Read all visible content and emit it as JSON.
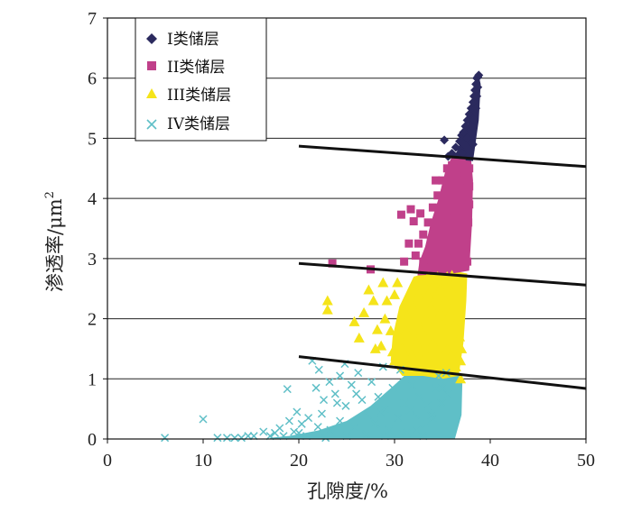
{
  "chart_data": {
    "type": "scatter",
    "xlabel": "孔隙度/%",
    "ylabel": "渗透率/μm",
    "ylabel_superscript": "2",
    "xlim": [
      0,
      50
    ],
    "ylim": [
      0,
      7
    ],
    "x_ticks": [
      "0",
      "10",
      "20",
      "30",
      "40",
      "50"
    ],
    "y_ticks": [
      "0",
      "1",
      "2",
      "3",
      "4",
      "5",
      "6",
      "7"
    ],
    "grid": "horizontal",
    "legend_position": "top-left",
    "series": [
      {
        "name": "I类储层",
        "marker": "diamond",
        "color": "#2b2a5e",
        "points": [
          [
            35.2,
            4.97
          ],
          [
            35.6,
            4.7
          ],
          [
            36.0,
            4.75
          ],
          [
            36.4,
            4.85
          ],
          [
            36.8,
            4.95
          ],
          [
            37.0,
            5.05
          ],
          [
            37.2,
            5.1
          ],
          [
            37.4,
            5.2
          ],
          [
            37.3,
            4.9
          ],
          [
            36.9,
            4.7
          ],
          [
            37.6,
            5.3
          ],
          [
            37.8,
            5.4
          ],
          [
            37.6,
            5.0
          ],
          [
            38.0,
            5.5
          ],
          [
            38.1,
            5.2
          ],
          [
            38.2,
            5.6
          ],
          [
            38.3,
            5.7
          ],
          [
            38.4,
            5.8
          ],
          [
            38.5,
            5.9
          ],
          [
            38.6,
            6.0
          ],
          [
            38.7,
            6.02
          ],
          [
            38.8,
            6.05
          ],
          [
            38.5,
            5.5
          ],
          [
            38.3,
            5.3
          ],
          [
            37.9,
            4.8
          ],
          [
            38.6,
            5.7
          ],
          [
            38.7,
            5.85
          ],
          [
            38.2,
            4.9
          ],
          [
            36.5,
            4.7
          ],
          [
            37.1,
            4.75
          ]
        ]
      },
      {
        "name": "II类储层",
        "marker": "square",
        "color": "#c0408a",
        "points": [
          [
            23.5,
            2.92
          ],
          [
            27.5,
            2.82
          ],
          [
            30.7,
            3.73
          ],
          [
            31.7,
            3.82
          ],
          [
            32.0,
            3.62
          ],
          [
            32.7,
            3.75
          ],
          [
            31.5,
            3.25
          ],
          [
            31.0,
            2.95
          ],
          [
            32.2,
            3.05
          ],
          [
            33.0,
            3.4
          ],
          [
            33.5,
            3.6
          ],
          [
            34.0,
            3.85
          ],
          [
            34.5,
            4.05
          ],
          [
            35.0,
            4.3
          ],
          [
            35.5,
            4.5
          ],
          [
            36.0,
            4.55
          ],
          [
            36.5,
            4.6
          ],
          [
            37.0,
            4.62
          ],
          [
            37.5,
            4.55
          ],
          [
            33.5,
            2.85
          ],
          [
            34.0,
            3.1
          ],
          [
            34.6,
            3.35
          ],
          [
            35.2,
            3.6
          ],
          [
            35.7,
            3.9
          ],
          [
            36.2,
            4.1
          ],
          [
            36.8,
            4.3
          ],
          [
            37.3,
            4.4
          ],
          [
            37.8,
            4.5
          ],
          [
            35.0,
            2.8
          ],
          [
            35.5,
            3.0
          ],
          [
            36.0,
            3.2
          ],
          [
            36.5,
            3.5
          ],
          [
            37.0,
            3.8
          ],
          [
            37.5,
            4.0
          ],
          [
            37.8,
            4.2
          ],
          [
            34.0,
            2.8
          ],
          [
            36.8,
            2.9
          ],
          [
            37.3,
            3.3
          ],
          [
            37.7,
            3.6
          ],
          [
            37.8,
            3.9
          ],
          [
            33.0,
            2.95
          ],
          [
            32.5,
            3.25
          ],
          [
            34.8,
            3.7
          ],
          [
            36.3,
            3.8
          ],
          [
            35.8,
            4.25
          ],
          [
            37.6,
            2.95
          ],
          [
            36.2,
            2.85
          ],
          [
            33.8,
            3.3
          ],
          [
            34.3,
            4.3
          ],
          [
            36.9,
            4.5
          ]
        ]
      },
      {
        "name": "III类储层",
        "marker": "triangle",
        "color": "#f5e41a",
        "points": [
          [
            23.0,
            2.3
          ],
          [
            23.0,
            2.15
          ],
          [
            25.8,
            1.95
          ],
          [
            26.3,
            1.68
          ],
          [
            26.8,
            2.1
          ],
          [
            27.3,
            2.48
          ],
          [
            27.8,
            2.3
          ],
          [
            28.2,
            1.82
          ],
          [
            28.0,
            1.5
          ],
          [
            28.6,
            1.55
          ],
          [
            29.2,
            2.3
          ],
          [
            29.0,
            2.0
          ],
          [
            29.6,
            1.8
          ],
          [
            30.0,
            2.4
          ],
          [
            30.3,
            2.6
          ],
          [
            30.0,
            1.3
          ],
          [
            30.8,
            1.5
          ],
          [
            31.3,
            2.05
          ],
          [
            31.9,
            2.2
          ],
          [
            32.5,
            2.4
          ],
          [
            33.0,
            2.6
          ],
          [
            33.5,
            2.7
          ],
          [
            34.0,
            2.55
          ],
          [
            34.5,
            2.7
          ],
          [
            35.0,
            2.65
          ],
          [
            35.5,
            2.7
          ],
          [
            36.0,
            2.72
          ],
          [
            36.5,
            2.68
          ],
          [
            31.8,
            1.4
          ],
          [
            32.3,
            1.6
          ],
          [
            32.8,
            1.8
          ],
          [
            33.3,
            2.0
          ],
          [
            33.8,
            2.2
          ],
          [
            34.3,
            2.4
          ],
          [
            34.8,
            2.5
          ],
          [
            35.3,
            2.3
          ],
          [
            35.8,
            2.1
          ],
          [
            36.3,
            1.9
          ],
          [
            36.8,
            1.7
          ],
          [
            37.0,
            1.5
          ],
          [
            36.9,
            1.3
          ],
          [
            36.4,
            1.2
          ],
          [
            35.6,
            1.15
          ],
          [
            34.7,
            1.2
          ],
          [
            33.8,
            1.25
          ],
          [
            32.9,
            1.3
          ],
          [
            31.5,
            1.2
          ],
          [
            30.5,
            1.7
          ],
          [
            29.8,
            1.45
          ],
          [
            28.8,
            2.6
          ],
          [
            30.8,
            2.0
          ],
          [
            32.0,
            2.5
          ],
          [
            35.0,
            1.9
          ],
          [
            34.0,
            1.6
          ],
          [
            36.0,
            2.45
          ],
          [
            36.9,
            1.0
          ],
          [
            35.5,
            1.5
          ],
          [
            33.0,
            1.5
          ],
          [
            31.2,
            1.8
          ],
          [
            33.5,
            2.4
          ],
          [
            34.8,
            2.1
          ],
          [
            35.9,
            1.4
          ]
        ]
      },
      {
        "name": "IV类储层",
        "marker": "x",
        "color": "#5fbfc7",
        "points": [
          [
            6.0,
            0.02
          ],
          [
            10.0,
            0.33
          ],
          [
            11.5,
            0.02
          ],
          [
            12.5,
            0.02
          ],
          [
            13.3,
            0.02
          ],
          [
            14.0,
            0.02
          ],
          [
            14.7,
            0.05
          ],
          [
            15.3,
            0.05
          ],
          [
            16.3,
            0.12
          ],
          [
            17.0,
            0.05
          ],
          [
            17.5,
            0.1
          ],
          [
            18.0,
            0.18
          ],
          [
            18.4,
            0.05
          ],
          [
            18.8,
            0.83
          ],
          [
            19.0,
            0.3
          ],
          [
            19.5,
            0.12
          ],
          [
            19.8,
            0.45
          ],
          [
            20.3,
            0.25
          ],
          [
            20.8,
            0.05
          ],
          [
            21.0,
            0.35
          ],
          [
            21.4,
            1.3
          ],
          [
            21.8,
            0.85
          ],
          [
            22.1,
            1.15
          ],
          [
            22.4,
            0.42
          ],
          [
            22.6,
            0.65
          ],
          [
            23.2,
            0.95
          ],
          [
            23.3,
            0.15
          ],
          [
            23.8,
            0.75
          ],
          [
            24.3,
            0.3
          ],
          [
            24.3,
            1.05
          ],
          [
            24.8,
            1.25
          ],
          [
            24.9,
            0.55
          ],
          [
            25.5,
            0.9
          ],
          [
            25.8,
            0.2
          ],
          [
            26.2,
            1.1
          ],
          [
            26.6,
            0.65
          ],
          [
            27.2,
            0.4
          ],
          [
            27.6,
            0.95
          ],
          [
            28.0,
            0.25
          ],
          [
            28.3,
            0.7
          ],
          [
            28.8,
            1.2
          ],
          [
            29.0,
            0.5
          ],
          [
            29.4,
            0.15
          ],
          [
            29.8,
            0.85
          ],
          [
            30.3,
            0.35
          ],
          [
            30.6,
            1.15
          ],
          [
            31.0,
            0.6
          ],
          [
            31.3,
            0.1
          ],
          [
            31.8,
            0.9
          ],
          [
            32.2,
            0.4
          ],
          [
            32.6,
            0.7
          ],
          [
            33.0,
            0.05
          ],
          [
            33.3,
            0.25
          ],
          [
            33.5,
            0.55
          ],
          [
            34.0,
            0.35
          ],
          [
            34.3,
            0.85
          ],
          [
            34.6,
            1.05
          ],
          [
            34.9,
            0.6
          ],
          [
            35.2,
            0.95
          ],
          [
            35.4,
            1.1
          ],
          [
            35.6,
            0.75
          ],
          [
            22.8,
            0.02
          ],
          [
            25.0,
            0.05
          ],
          [
            27.0,
            0.08
          ],
          [
            29.0,
            0.05
          ],
          [
            30.8,
            0.08
          ],
          [
            32.4,
            0.15
          ],
          [
            33.8,
            0.4
          ],
          [
            35.0,
            0.85
          ],
          [
            26.0,
            0.75
          ],
          [
            28.6,
            0.45
          ],
          [
            31.6,
            0.48
          ],
          [
            24.0,
            0.6
          ],
          [
            20.0,
            0.1
          ],
          [
            22.0,
            0.2
          ]
        ]
      }
    ],
    "boundary_lines": [
      {
        "x": [
          20,
          50
        ],
        "y": [
          4.87,
          4.53
        ]
      },
      {
        "x": [
          20,
          50
        ],
        "y": [
          2.92,
          2.56
        ]
      },
      {
        "x": [
          20,
          50
        ],
        "y": [
          1.37,
          0.84
        ]
      }
    ]
  }
}
